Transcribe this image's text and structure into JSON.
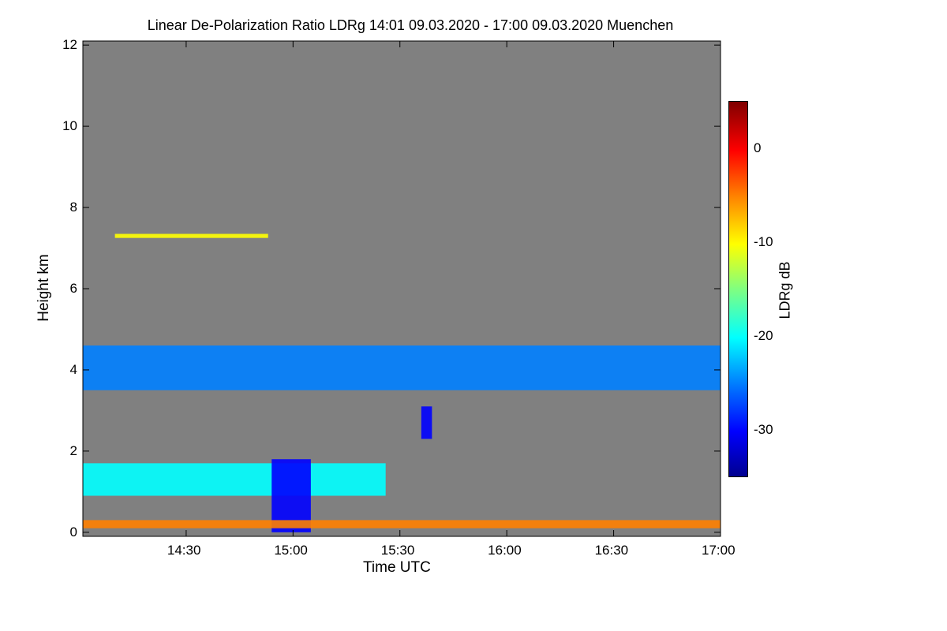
{
  "chart_data": {
    "type": "heatmap",
    "title": "Linear De-Polarization Ratio LDRg   14:01 09.03.2020 - 17:00 09.03.2020 Muenchen",
    "xlabel": "Time UTC",
    "ylabel": "Height km",
    "colorbar_label": "LDRg dB",
    "x_range_minutes": [
      841,
      1020
    ],
    "y_range_km": [
      -0.1,
      12.1
    ],
    "x_ticks": [
      {
        "minutes": 870,
        "label": "14:30"
      },
      {
        "minutes": 900,
        "label": "15:00"
      },
      {
        "minutes": 930,
        "label": "15:30"
      },
      {
        "minutes": 960,
        "label": "16:00"
      },
      {
        "minutes": 990,
        "label": "16:30"
      },
      {
        "minutes": 1020,
        "label": "17:00"
      }
    ],
    "y_ticks": [
      {
        "value": 0,
        "label": "0"
      },
      {
        "value": 2,
        "label": "2"
      },
      {
        "value": 4,
        "label": "4"
      },
      {
        "value": 6,
        "label": "6"
      },
      {
        "value": 8,
        "label": "8"
      },
      {
        "value": 10,
        "label": "10"
      },
      {
        "value": 12,
        "label": "12"
      }
    ],
    "colorbar_range_db": [
      -35,
      5
    ],
    "colorbar_ticks": [
      {
        "value": 0,
        "label": "0"
      },
      {
        "value": -10,
        "label": "-10"
      },
      {
        "value": -20,
        "label": "-20"
      },
      {
        "value": -30,
        "label": "-30"
      }
    ],
    "background_color": "#808080",
    "features": [
      {
        "name": "ice-cloud-layer",
        "t0": 841,
        "t1": 1020,
        "h0": 3.5,
        "h1": 4.6,
        "ldr_db": -27
      },
      {
        "name": "cirrus-trace",
        "t0": 850,
        "t1": 893,
        "h0": 7.25,
        "h1": 7.35,
        "ldr_db": -10
      },
      {
        "name": "cloud-patch",
        "t0": 936,
        "t1": 939,
        "h0": 2.3,
        "h1": 3.1,
        "ldr_db": -31
      },
      {
        "name": "low-cloud-layer",
        "t0": 841,
        "t1": 926,
        "h0": 0.9,
        "h1": 1.7,
        "ldr_db": -22
      },
      {
        "name": "precipitation-column",
        "t0": 894,
        "t1": 905,
        "h0": 0.0,
        "h1": 1.8,
        "ldr_db": -30
      },
      {
        "name": "boundary-layer-aerosol",
        "t0": 841,
        "t1": 1020,
        "h0": 0.1,
        "h1": 0.3,
        "ldr_db": -5
      }
    ]
  }
}
